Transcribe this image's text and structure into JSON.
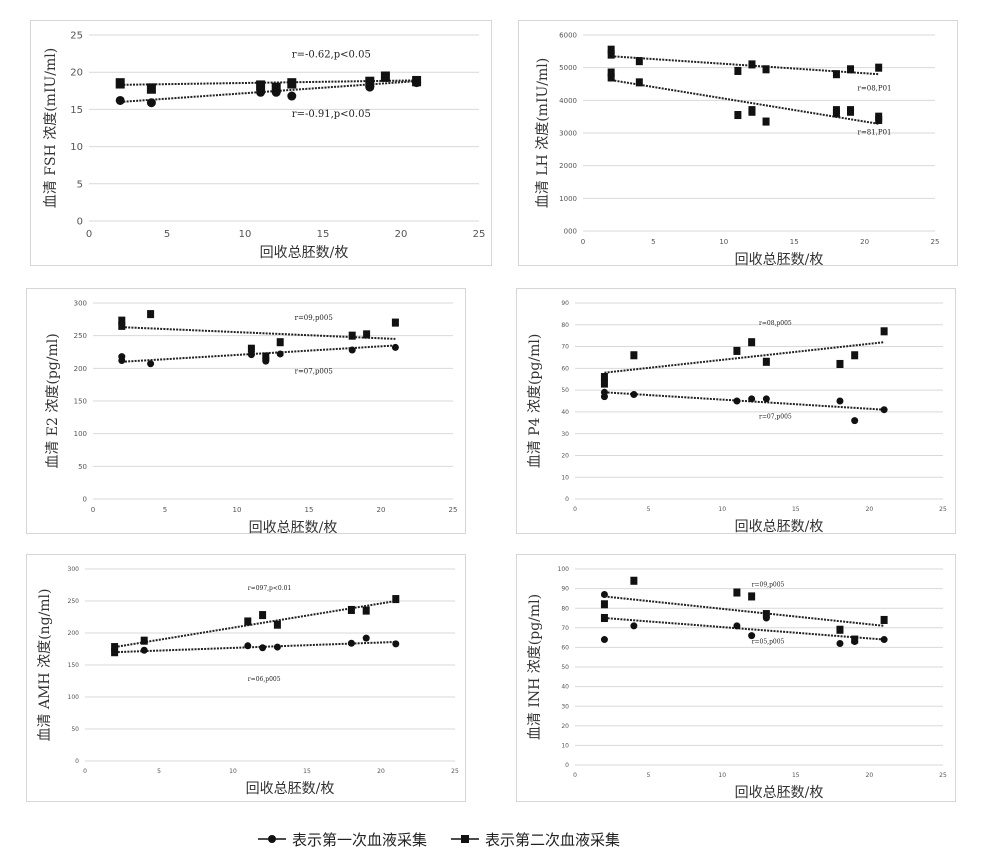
{
  "legend": {
    "first_label": "表示第一次血液采集",
    "second_label": "表示第二次血液采集"
  },
  "colors": {
    "marker": "#111111",
    "grid": "#d9d9d9",
    "axis_text": "#555555",
    "trend": "#222222"
  },
  "chart_data": [
    {
      "id": "fsh",
      "type": "scatter",
      "ylabel": "血清 FSH 浓度(mIU/ml)",
      "xlabel": "回收总胚数/枚",
      "xlim": [
        0,
        25
      ],
      "ylim": [
        0,
        25
      ],
      "xticks": [
        "0",
        "5",
        "10",
        "15",
        "20",
        "25"
      ],
      "yticks": [
        "0",
        "5",
        "10",
        "15",
        "20",
        "25"
      ],
      "grid": "horizontal",
      "series": [
        {
          "marker": "circle",
          "x": [
            2,
            4,
            11,
            12,
            13,
            18,
            21
          ],
          "y": [
            16.2,
            15.9,
            17.3,
            17.3,
            16.8,
            18.0,
            18.6
          ],
          "trend": [
            [
              2,
              16.0
            ],
            [
              21,
              18.8
            ]
          ]
        },
        {
          "marker": "square",
          "x": [
            2,
            4,
            11,
            12,
            13,
            18,
            19,
            21
          ],
          "y": [
            18.5,
            17.8,
            18.2,
            17.9,
            18.5,
            18.7,
            19.4,
            18.8
          ],
          "trend": [
            [
              2,
              18.3
            ],
            [
              21,
              18.9
            ]
          ]
        }
      ],
      "annotations": [
        {
          "text": "r=-0.62,p<0.05",
          "x": 13,
          "y": 22
        },
        {
          "text": "r=-0.91,p<0.05",
          "x": 13,
          "y": 14
        }
      ]
    },
    {
      "id": "lh",
      "type": "scatter",
      "ylabel": "血清 LH 浓度(mIU/ml)",
      "xlabel": "回收总胚数/枚",
      "xlim": [
        0,
        25
      ],
      "ylim": [
        0,
        6000
      ],
      "xticks": [
        "0",
        "5",
        "10",
        "15",
        "20",
        "25"
      ],
      "yticks": [
        "000",
        "1000",
        "2000",
        "3000",
        "4000",
        "5000",
        "6000"
      ],
      "grid": "horizontal",
      "series": [
        {
          "marker": "square",
          "x": [
            2,
            2,
            4,
            11,
            12,
            12,
            13,
            18,
            18,
            19,
            19,
            21,
            21
          ],
          "y": [
            4700,
            4850,
            4550,
            3550,
            3650,
            3700,
            3350,
            3700,
            3600,
            3700,
            3650,
            3500,
            3400
          ],
          "trend": [
            [
              2,
              4620
            ],
            [
              21,
              3280
            ]
          ]
        },
        {
          "marker": "square",
          "x": [
            2,
            2,
            4,
            11,
            12,
            13,
            18,
            19,
            21
          ],
          "y": [
            5550,
            5400,
            5200,
            4900,
            5100,
            4950,
            4800,
            4950,
            5000
          ],
          "trend": [
            [
              2,
              5350
            ],
            [
              21,
              4800
            ]
          ]
        }
      ],
      "annotations": [
        {
          "text": "r=08,P01",
          "x": 19.5,
          "y": 4300
        },
        {
          "text": "r=81,P01",
          "x": 19.5,
          "y": 2950
        }
      ]
    },
    {
      "id": "e2",
      "type": "scatter",
      "ylabel": "血清 E2 浓度(pg/ml)",
      "xlabel": "回收总胚数/枚",
      "xlim": [
        0,
        25
      ],
      "ylim": [
        0,
        300
      ],
      "xticks": [
        "0",
        "5",
        "10",
        "15",
        "20",
        "25"
      ],
      "yticks": [
        "0",
        "50",
        "100",
        "150",
        "200",
        "250",
        "300"
      ],
      "grid": "horizontal",
      "series": [
        {
          "marker": "circle",
          "x": [
            2,
            2,
            4,
            11,
            12,
            12,
            13,
            18,
            21
          ],
          "y": [
            218,
            212,
            207,
            221,
            215,
            211,
            222,
            228,
            232
          ],
          "trend": [
            [
              2,
              210
            ],
            [
              21,
              235
            ]
          ]
        },
        {
          "marker": "square",
          "x": [
            2,
            2,
            4,
            11,
            12,
            13,
            18,
            19,
            21
          ],
          "y": [
            273,
            265,
            283,
            230,
            218,
            240,
            250,
            252,
            270
          ],
          "trend": [
            [
              2,
              263
            ],
            [
              21,
              245
            ]
          ]
        }
      ],
      "annotations": [
        {
          "text": "r=09,p005",
          "x": 14,
          "y": 274
        },
        {
          "text": "r=07,p005",
          "x": 14,
          "y": 192
        }
      ]
    },
    {
      "id": "p4",
      "type": "scatter",
      "ylabel": "血清 P4 浓度(pg/ml)",
      "xlabel": "回收总胚数/枚",
      "xlim": [
        0,
        25
      ],
      "ylim": [
        0,
        90
      ],
      "xticks": [
        "0",
        "5",
        "10",
        "15",
        "20",
        "25"
      ],
      "yticks": [
        "0",
        "10",
        "20",
        "30",
        "40",
        "50",
        "60",
        "70",
        "80",
        "90"
      ],
      "grid": "horizontal",
      "series": [
        {
          "marker": "circle",
          "x": [
            2,
            2,
            4,
            11,
            12,
            13,
            18,
            19,
            21
          ],
          "y": [
            49,
            47,
            48,
            45,
            46,
            46,
            45,
            36,
            41
          ],
          "trend": [
            [
              2,
              49
            ],
            [
              21,
              41
            ]
          ]
        },
        {
          "marker": "square",
          "x": [
            2,
            2,
            4,
            11,
            12,
            13,
            18,
            19,
            21
          ],
          "y": [
            56,
            53,
            66,
            68,
            72,
            63,
            62,
            66,
            77
          ],
          "trend": [
            [
              2,
              58
            ],
            [
              21,
              72
            ]
          ]
        }
      ],
      "annotations": [
        {
          "text": "r=08,p005",
          "x": 12.5,
          "y": 80
        },
        {
          "text": "r=07,p005",
          "x": 12.5,
          "y": 37
        }
      ]
    },
    {
      "id": "amh",
      "type": "scatter",
      "ylabel": "血清 AMH 浓度(ng/ml)",
      "xlabel": "回收总胚数/枚",
      "xlim": [
        0,
        25
      ],
      "ylim": [
        0,
        300
      ],
      "xticks": [
        "0",
        "5",
        "10",
        "15",
        "20",
        "25"
      ],
      "yticks": [
        "0",
        "50",
        "100",
        "150",
        "200",
        "250",
        "300"
      ],
      "grid": "horizontal",
      "series": [
        {
          "marker": "circle",
          "x": [
            2,
            4,
            11,
            12,
            13,
            18,
            19,
            21
          ],
          "y": [
            172,
            173,
            180,
            177,
            178,
            184,
            192,
            183
          ],
          "trend": [
            [
              2,
              170
            ],
            [
              21,
              186
            ]
          ]
        },
        {
          "marker": "square",
          "x": [
            2,
            2,
            4,
            11,
            12,
            13,
            18,
            19,
            21
          ],
          "y": [
            178,
            170,
            188,
            218,
            228,
            213,
            236,
            235,
            253
          ],
          "trend": [
            [
              2,
              178
            ],
            [
              21,
              250
            ]
          ]
        }
      ],
      "annotations": [
        {
          "text": "r=097,p<0.01",
          "x": 11,
          "y": 267
        },
        {
          "text": "r=06,p005",
          "x": 11,
          "y": 125
        }
      ]
    },
    {
      "id": "inh",
      "type": "scatter",
      "ylabel": "血清 INH 浓度(pg/ml)",
      "xlabel": "回收总胚数/枚",
      "xlim": [
        0,
        25
      ],
      "ylim": [
        0,
        100
      ],
      "xticks": [
        "0",
        "5",
        "10",
        "15",
        "20",
        "25"
      ],
      "yticks": [
        "0",
        "10",
        "20",
        "30",
        "40",
        "50",
        "60",
        "70",
        "80",
        "90",
        "100"
      ],
      "grid": "horizontal",
      "series": [
        {
          "marker": "circle",
          "x": [
            2,
            2,
            4,
            11,
            12,
            13,
            18,
            19,
            21
          ],
          "y": [
            87,
            64,
            71,
            71,
            66,
            75,
            62,
            63,
            64
          ],
          "trend": [
            [
              2,
              75
            ],
            [
              21,
              64
            ]
          ]
        },
        {
          "marker": "square",
          "x": [
            2,
            2,
            4,
            11,
            12,
            13,
            18,
            19,
            21
          ],
          "y": [
            82,
            75,
            94,
            88,
            86,
            77,
            69,
            64,
            74
          ],
          "trend": [
            [
              2,
              86
            ],
            [
              21,
              71
            ]
          ]
        }
      ],
      "annotations": [
        {
          "text": "r=09,p005",
          "x": 12,
          "y": 91
        },
        {
          "text": "r=05,p005",
          "x": 12,
          "y": 62
        }
      ]
    }
  ]
}
